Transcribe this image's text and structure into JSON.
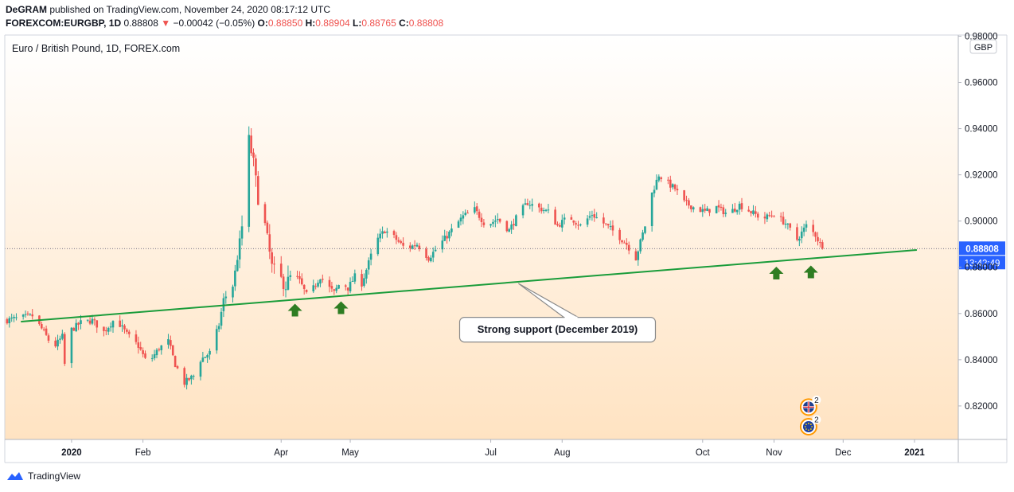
{
  "header": {
    "author": "DeGRAM",
    "published_text": "published on TradingView.com, November 24, 2020 08:17:12 UTC",
    "symbol": "FOREXCOM:EURGBP, 1D",
    "last": "0.88808",
    "change_arrow": "▼",
    "change": "−0.00042 (−0.05%)",
    "o_label": "O:",
    "o_value": "0.88850",
    "h_label": "H:",
    "h_value": "0.88904",
    "l_label": "L:",
    "l_value": "0.88765",
    "c_label": "C:",
    "c_value": "0.88808"
  },
  "footer": {
    "brand": "TradingView"
  },
  "colors": {
    "up": "#26a69a",
    "down": "#ef5350",
    "support": "#1a9c3a",
    "arrow": "#2e7d22",
    "price_tag": "#2962ff",
    "bg_top": "#ffffff",
    "bg_bottom": "#ffe3c2"
  },
  "chart_data": {
    "type": "candlestick",
    "title": "Euro / British Pound, 1D, FOREX.com",
    "currency_badge": "GBP",
    "ylim": [
      0.8055,
      0.9805
    ],
    "y_ticks": [
      {
        "v": 0.82,
        "label": "0.82000"
      },
      {
        "v": 0.84,
        "label": "0.84000"
      },
      {
        "v": 0.86,
        "label": "0.86000"
      },
      {
        "v": 0.88,
        "label": "0.88000"
      },
      {
        "v": 0.9,
        "label": "0.90000"
      },
      {
        "v": 0.92,
        "label": "0.92000"
      },
      {
        "v": 0.94,
        "label": "0.94000"
      },
      {
        "v": 0.96,
        "label": "0.96000"
      },
      {
        "v": 0.98,
        "label": "0.98000"
      }
    ],
    "x_range_days": [
      -29,
      385
    ],
    "x_ticks": [
      {
        "day": 0,
        "label": "2020",
        "bold": true
      },
      {
        "day": 31,
        "label": "Feb",
        "bold": false
      },
      {
        "day": 91,
        "label": "Apr",
        "bold": false
      },
      {
        "day": 121,
        "label": "May",
        "bold": false
      },
      {
        "day": 182,
        "label": "Jul",
        "bold": false
      },
      {
        "day": 213,
        "label": "Aug",
        "bold": false
      },
      {
        "day": 274,
        "label": "Oct",
        "bold": false
      },
      {
        "day": 305,
        "label": "Nov",
        "bold": false
      },
      {
        "day": 335,
        "label": "Dec",
        "bold": false
      },
      {
        "day": 366,
        "label": "2021",
        "bold": true
      }
    ],
    "price_path": [
      [
        -29,
        0.857
      ],
      [
        -17,
        0.859
      ],
      [
        -12,
        0.852
      ],
      [
        -8,
        0.845
      ],
      [
        -4,
        0.85
      ],
      [
        -3,
        0.838
      ],
      [
        0,
        0.853
      ],
      [
        4,
        0.856
      ],
      [
        9,
        0.857
      ],
      [
        14,
        0.852
      ],
      [
        19,
        0.858
      ],
      [
        24,
        0.851
      ],
      [
        29,
        0.846
      ],
      [
        33,
        0.838
      ],
      [
        38,
        0.845
      ],
      [
        42,
        0.848
      ],
      [
        45,
        0.838
      ],
      [
        49,
        0.83
      ],
      [
        53,
        0.833
      ],
      [
        56,
        0.84
      ],
      [
        60,
        0.843
      ],
      [
        64,
        0.855
      ],
      [
        66,
        0.866
      ],
      [
        70,
        0.872
      ],
      [
        73,
        0.89
      ],
      [
        75,
        0.905
      ],
      [
        77,
        0.935
      ],
      [
        79,
        0.925
      ],
      [
        81,
        0.91
      ],
      [
        84,
        0.898
      ],
      [
        87,
        0.88
      ],
      [
        90,
        0.876
      ],
      [
        93,
        0.872
      ],
      [
        96,
        0.878
      ],
      [
        99,
        0.874
      ],
      [
        102,
        0.868
      ],
      [
        105,
        0.871
      ],
      [
        108,
        0.876
      ],
      [
        111,
        0.872
      ],
      [
        114,
        0.869
      ],
      [
        117,
        0.874
      ],
      [
        120,
        0.871
      ],
      [
        123,
        0.876
      ],
      [
        126,
        0.873
      ],
      [
        129,
        0.882
      ],
      [
        132,
        0.891
      ],
      [
        136,
        0.896
      ],
      [
        140,
        0.893
      ],
      [
        145,
        0.888
      ],
      [
        150,
        0.89
      ],
      [
        155,
        0.884
      ],
      [
        160,
        0.89
      ],
      [
        165,
        0.896
      ],
      [
        170,
        0.902
      ],
      [
        175,
        0.905
      ],
      [
        180,
        0.898
      ],
      [
        185,
        0.901
      ],
      [
        190,
        0.896
      ],
      [
        194,
        0.903
      ],
      [
        198,
        0.908
      ],
      [
        202,
        0.906
      ],
      [
        207,
        0.904
      ],
      [
        211,
        0.898
      ],
      [
        216,
        0.902
      ],
      [
        221,
        0.898
      ],
      [
        226,
        0.903
      ],
      [
        231,
        0.899
      ],
      [
        236,
        0.895
      ],
      [
        241,
        0.89
      ],
      [
        245,
        0.884
      ],
      [
        249,
        0.898
      ],
      [
        252,
        0.912
      ],
      [
        255,
        0.92
      ],
      [
        258,
        0.917
      ],
      [
        262,
        0.914
      ],
      [
        266,
        0.908
      ],
      [
        270,
        0.906
      ],
      [
        275,
        0.904
      ],
      [
        280,
        0.906
      ],
      [
        285,
        0.903
      ],
      [
        290,
        0.907
      ],
      [
        295,
        0.904
      ],
      [
        300,
        0.901
      ],
      [
        305,
        0.903
      ],
      [
        310,
        0.899
      ],
      [
        315,
        0.892
      ],
      [
        319,
        0.898
      ],
      [
        323,
        0.894
      ],
      [
        326,
        0.888
      ]
    ],
    "last_price": 0.88808,
    "last_price_label": "0.88808",
    "countdown_label": "13:42:49",
    "support_line": {
      "p1": [
        -22,
        0.8565
      ],
      "p2": [
        367,
        0.8875
      ]
    },
    "annotation": {
      "text": "Strong support (December 2019)",
      "anchor": [
        194,
        0.873
      ],
      "box_center": [
        211,
        0.853
      ]
    },
    "arrows": [
      {
        "day": 97,
        "value": 0.8615
      },
      {
        "day": 117,
        "value": 0.8625
      },
      {
        "day": 306,
        "value": 0.8775
      },
      {
        "day": 321,
        "value": 0.878
      }
    ],
    "event_icons": [
      {
        "day": 320,
        "value": 0.8195,
        "flag": "uk",
        "count": "2"
      },
      {
        "day": 320,
        "value": 0.811,
        "flag": "eu",
        "count": "2"
      }
    ]
  }
}
